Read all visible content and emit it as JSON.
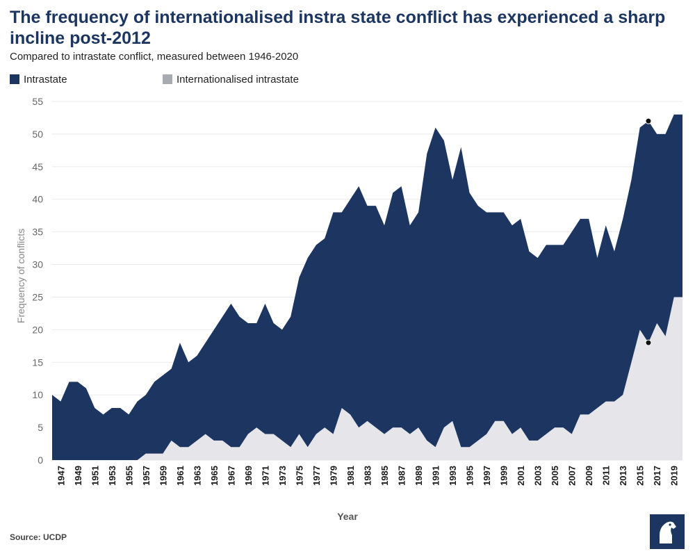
{
  "title": "The frequency of internationalised instra state conflict has experienced a sharp incline post-2012",
  "subtitle": "Compared to intrastate conflict, measured between 1946-2020",
  "source": "Source: UCDP",
  "colors": {
    "intrastate": "#1c3661",
    "internationalised": "#e6e6ea",
    "legend_internationalised": "#a9abb3"
  },
  "chart_data": {
    "type": "area",
    "stacked": false,
    "xlabel": "Year",
    "ylabel": "Frequency of conflicts",
    "ylim": [
      0,
      55
    ],
    "yticks": [
      0,
      5,
      10,
      15,
      20,
      25,
      30,
      35,
      40,
      45,
      50,
      55
    ],
    "xticks": [
      1947,
      1949,
      1951,
      1953,
      1955,
      1957,
      1959,
      1961,
      1963,
      1965,
      1967,
      1969,
      1971,
      1973,
      1975,
      1977,
      1979,
      1981,
      1983,
      1985,
      1987,
      1989,
      1991,
      1993,
      1995,
      1997,
      1999,
      2001,
      2003,
      2005,
      2007,
      2009,
      2011,
      2013,
      2015,
      2017,
      2019
    ],
    "grid": true,
    "legend_position": "top-left",
    "x": [
      1946,
      1947,
      1948,
      1949,
      1950,
      1951,
      1952,
      1953,
      1954,
      1955,
      1956,
      1957,
      1958,
      1959,
      1960,
      1961,
      1962,
      1963,
      1964,
      1965,
      1966,
      1967,
      1968,
      1969,
      1970,
      1971,
      1972,
      1973,
      1974,
      1975,
      1976,
      1977,
      1978,
      1979,
      1980,
      1981,
      1982,
      1983,
      1984,
      1985,
      1986,
      1987,
      1988,
      1989,
      1990,
      1991,
      1992,
      1993,
      1994,
      1995,
      1996,
      1997,
      1998,
      1999,
      2000,
      2001,
      2002,
      2003,
      2004,
      2005,
      2006,
      2007,
      2008,
      2009,
      2010,
      2011,
      2012,
      2013,
      2014,
      2015,
      2016,
      2017,
      2018,
      2019,
      2020
    ],
    "series": [
      {
        "name": "Intrastate",
        "values": [
          10,
          9,
          12,
          12,
          11,
          8,
          7,
          8,
          8,
          7,
          9,
          10,
          12,
          13,
          14,
          18,
          15,
          16,
          18,
          20,
          22,
          24,
          22,
          21,
          21,
          24,
          21,
          20,
          22,
          28,
          31,
          33,
          34,
          38,
          38,
          40,
          42,
          39,
          39,
          36,
          41,
          42,
          36,
          38,
          47,
          51,
          49,
          43,
          48,
          41,
          39,
          38,
          38,
          38,
          36,
          37,
          32,
          31,
          33,
          33,
          33,
          35,
          37,
          37,
          31,
          36,
          32,
          37,
          43,
          51,
          52,
          50,
          50,
          53,
          53
        ]
      },
      {
        "name": "Internationalised intrastate",
        "values": [
          0,
          0,
          0,
          0,
          0,
          0,
          0,
          0,
          0,
          0,
          0,
          1,
          1,
          1,
          3,
          2,
          2,
          3,
          4,
          3,
          3,
          2,
          2,
          4,
          5,
          4,
          4,
          3,
          2,
          4,
          2,
          4,
          5,
          4,
          8,
          7,
          5,
          6,
          5,
          4,
          5,
          5,
          4,
          5,
          3,
          2,
          5,
          6,
          2,
          2,
          3,
          4,
          6,
          6,
          4,
          5,
          3,
          3,
          4,
          5,
          5,
          4,
          7,
          7,
          8,
          9,
          9,
          10,
          15,
          20,
          18,
          21,
          19,
          25,
          25
        ]
      }
    ],
    "highlight_points": [
      {
        "series": "Intrastate",
        "x": 2016,
        "y": 52
      },
      {
        "series": "Internationalised intrastate",
        "x": 2016,
        "y": 18
      }
    ]
  }
}
